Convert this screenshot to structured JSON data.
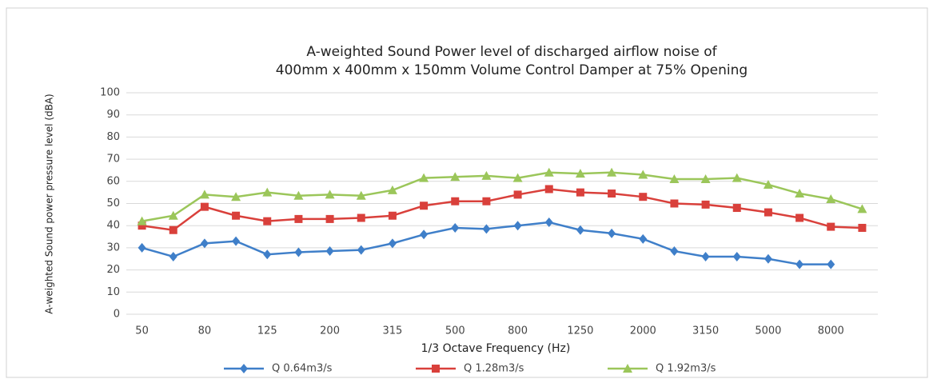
{
  "chart_data": {
    "type": "line",
    "title": [
      "A-weighted Sound Power level of discharged airflow noise of",
      "400mm x 400mm x 150mm Volume Control Damper at 75% Opening"
    ],
    "xlabel": "1/3 Octave Frequency (Hz)",
    "ylabel": "A-weighted Sound power pressure level (dBA)",
    "categories": [
      "50",
      null,
      "80",
      null,
      "125",
      null,
      "200",
      null,
      "315",
      null,
      "500",
      null,
      "800",
      null,
      "1250",
      null,
      "2000",
      null,
      "3150",
      null,
      "5000",
      null,
      "8000",
      null
    ],
    "series": [
      {
        "name": "Q 0.64m3/s",
        "color": "#3f7fc9",
        "marker": "diamond",
        "values": [
          30,
          26,
          32,
          33,
          27,
          28,
          28.5,
          29,
          32,
          36,
          39,
          38.5,
          40,
          41.5,
          38,
          36.5,
          34,
          28.5,
          26,
          26,
          25,
          22.5,
          22.5,
          null
        ]
      },
      {
        "name": "Q 1.28m3/s",
        "color": "#d9403b",
        "marker": "square",
        "values": [
          40,
          38,
          48.5,
          44.5,
          42,
          43,
          43,
          43.5,
          44.5,
          49,
          51,
          51,
          54,
          56.5,
          55,
          54.5,
          53,
          50,
          49.5,
          48,
          46,
          43.5,
          39.5,
          39
        ]
      },
      {
        "name": "Q 1.92m3/s",
        "color": "#9bc65a",
        "marker": "triangle",
        "values": [
          42,
          44.5,
          54,
          53,
          55,
          53.5,
          54,
          53.5,
          56,
          61.5,
          62,
          62.5,
          61.5,
          64,
          63.5,
          64,
          63,
          61,
          61,
          61.5,
          58.5,
          54.5,
          52,
          47.5
        ]
      }
    ],
    "ylim": [
      0,
      100
    ],
    "yticks": [
      0,
      10,
      20,
      30,
      40,
      50,
      60,
      70,
      80,
      90,
      100
    ],
    "grid": true,
    "legend": "bottom"
  }
}
